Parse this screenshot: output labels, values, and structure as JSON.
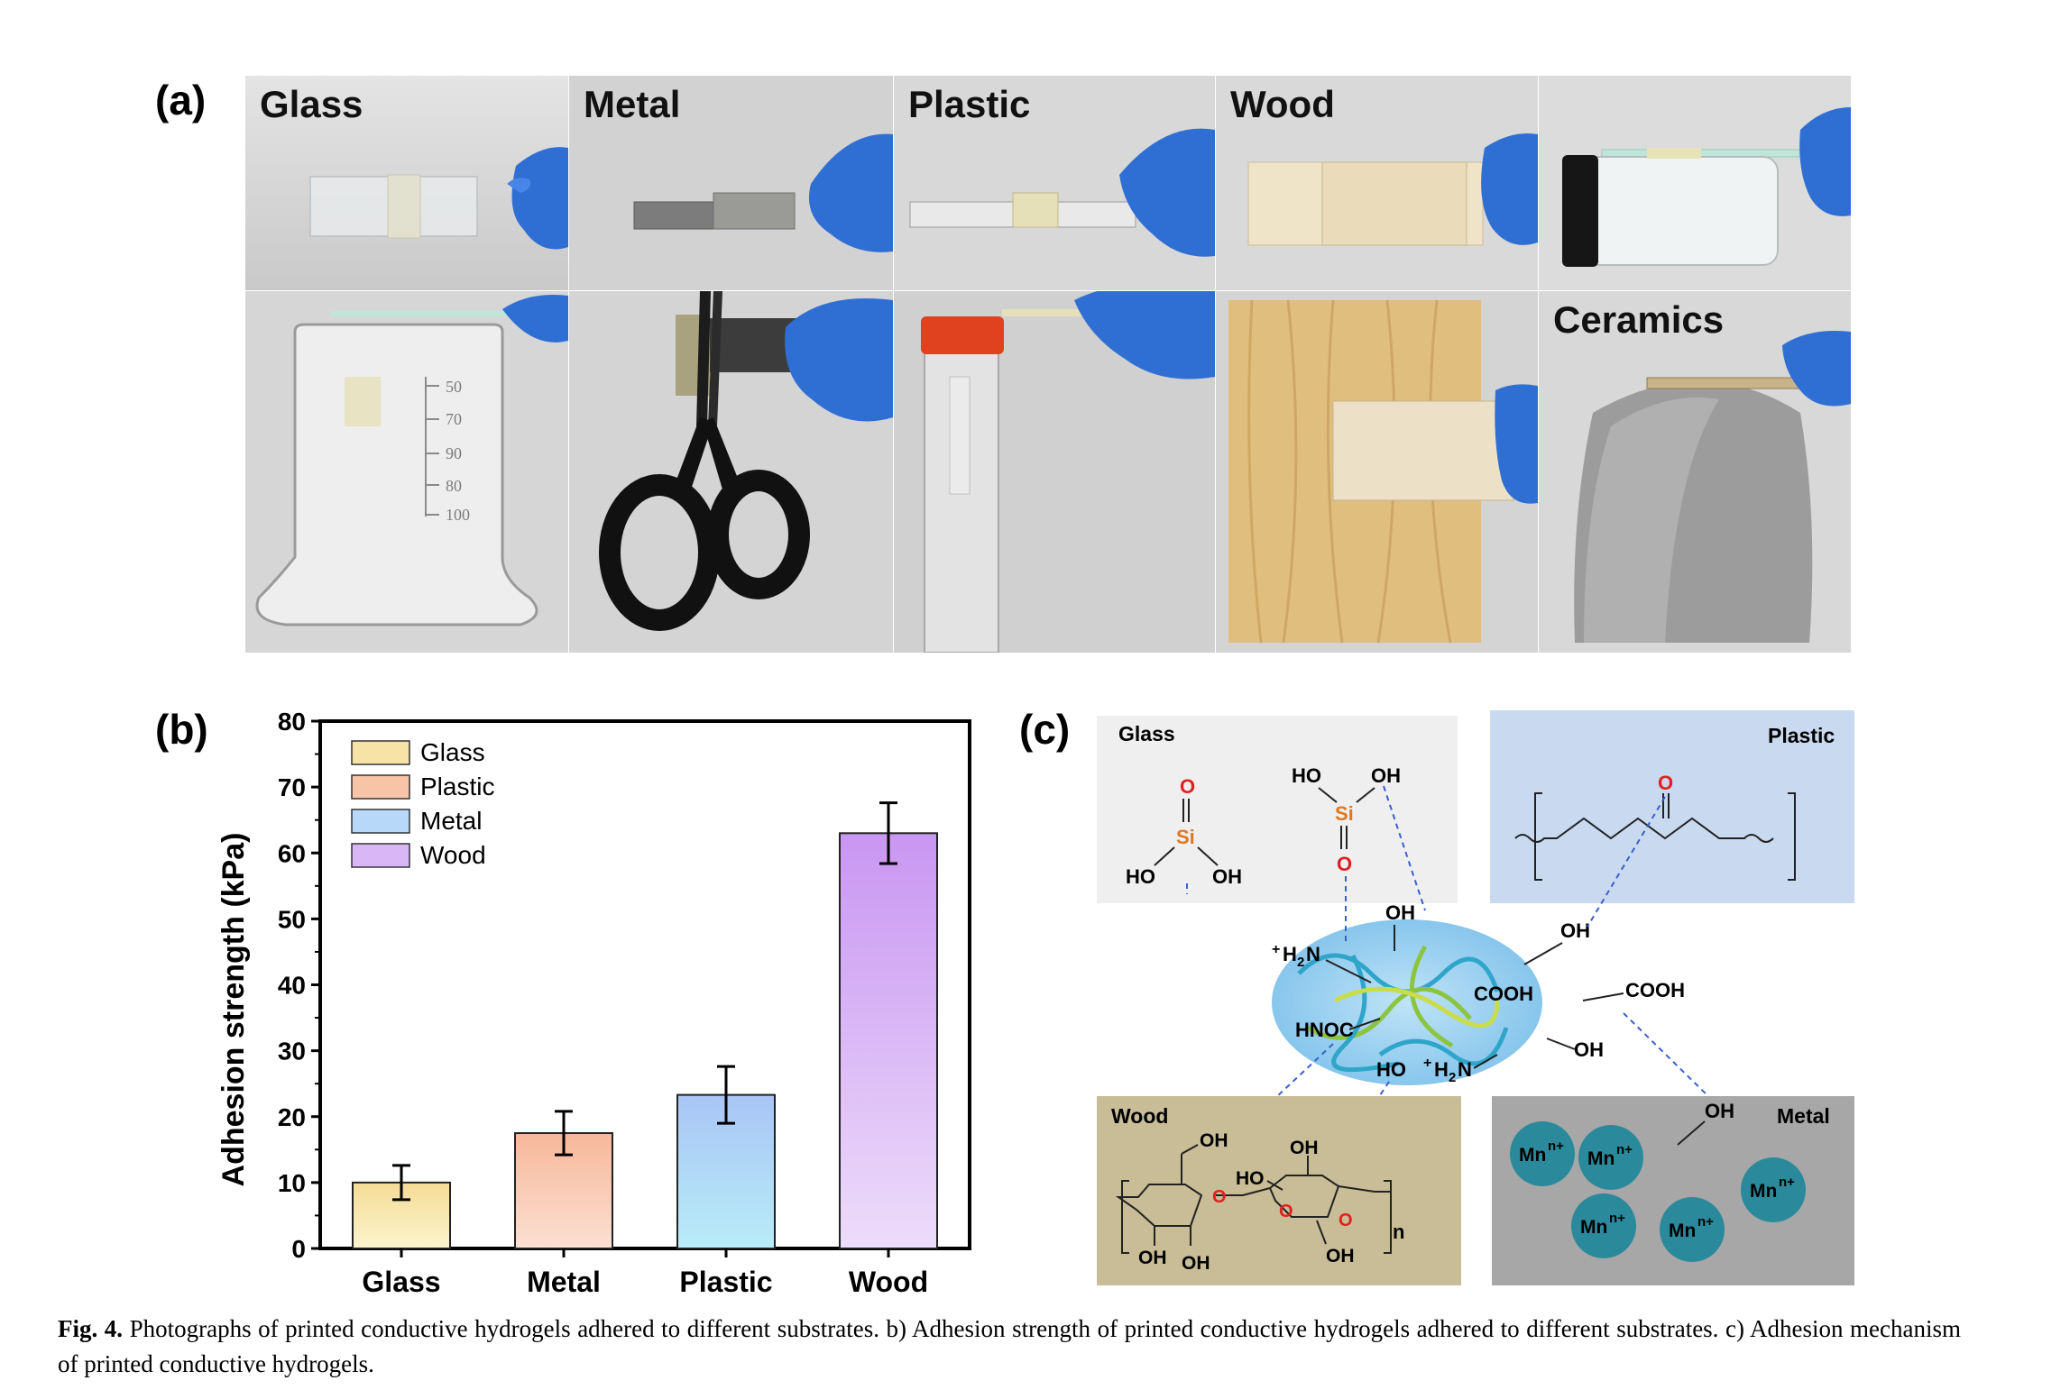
{
  "figure": {
    "panel_a_letter": "(a)",
    "panel_b_letter": "(b)",
    "panel_c_letter": "(c)"
  },
  "panel_a": {
    "photos_top": [
      {
        "label": "Glass"
      },
      {
        "label": "Metal"
      },
      {
        "label": "Plastic"
      },
      {
        "label": "Wood"
      },
      {
        "label": ""
      }
    ],
    "photos_bottom": [
      {
        "label": ""
      },
      {
        "label": ""
      },
      {
        "label": ""
      },
      {
        "label": ""
      },
      {
        "label": "Ceramics"
      }
    ],
    "beaker_marks": [
      "50",
      "70",
      "90",
      "80",
      "100"
    ]
  },
  "chart_data": {
    "type": "bar",
    "categories": [
      "Glass",
      "Metal",
      "Plastic",
      "Wood"
    ],
    "values": [
      10.0,
      17.5,
      23.3,
      63.0
    ],
    "errors": [
      2.6,
      3.3,
      4.3,
      4.6
    ],
    "ylabel": "Adhesion strength (kPa)",
    "xlabel": "",
    "ylim": [
      0,
      80
    ],
    "yticks": [
      0,
      10,
      20,
      30,
      40,
      50,
      60,
      70,
      80
    ],
    "legend": [
      {
        "name": "Glass",
        "color": "#f7e3a5"
      },
      {
        "name": "Plastic",
        "color": "#f8c4a8"
      },
      {
        "name": "Metal",
        "color": "#b7d8f8"
      },
      {
        "name": "Wood",
        "color": "#d9b6f6"
      }
    ],
    "legend_position": "top-left",
    "bar_colors": {
      "Glass": [
        "#f5dc96",
        "#fbf3cf"
      ],
      "Metal": [
        "#f7b79a",
        "#fbe0d2"
      ],
      "Plastic": [
        "#a9c5f5",
        "#b8ecf8"
      ],
      "Wood": [
        "#c996f2",
        "#eddcfa"
      ]
    }
  },
  "panel_c": {
    "glass_box": "Glass",
    "plastic_box": "Plastic",
    "wood_box": "Wood",
    "metal_box": "Metal",
    "ion_label": "Mn",
    "ion_charge": "n+",
    "si": "Si",
    "o": "O",
    "oh": "OH",
    "ho": "HO",
    "cooh": "COOH",
    "hnoc": "HNOC",
    "h2n_plus": "+",
    "h2n": "H",
    "h2n_sub": "2",
    "h2n_n": "N",
    "n_subscript": "n",
    "colors": {
      "glass_bg": "#efefef",
      "plastic_bg": "#c9d9ef",
      "wood_bg": "#c8bd96",
      "metal_bg": "#a7a7a7",
      "ion": "#2a8a9c",
      "red": "#e02020",
      "orange": "#e07820",
      "dash": "#3a5fcd"
    }
  },
  "caption": {
    "label": "Fig. 4.",
    "text": " Photographs of printed conductive hydrogels adhered to different substrates. b) Adhesion strength of printed conductive hydrogels adhered to different substrates. c) Adhesion mechanism of printed conductive hydrogels."
  }
}
